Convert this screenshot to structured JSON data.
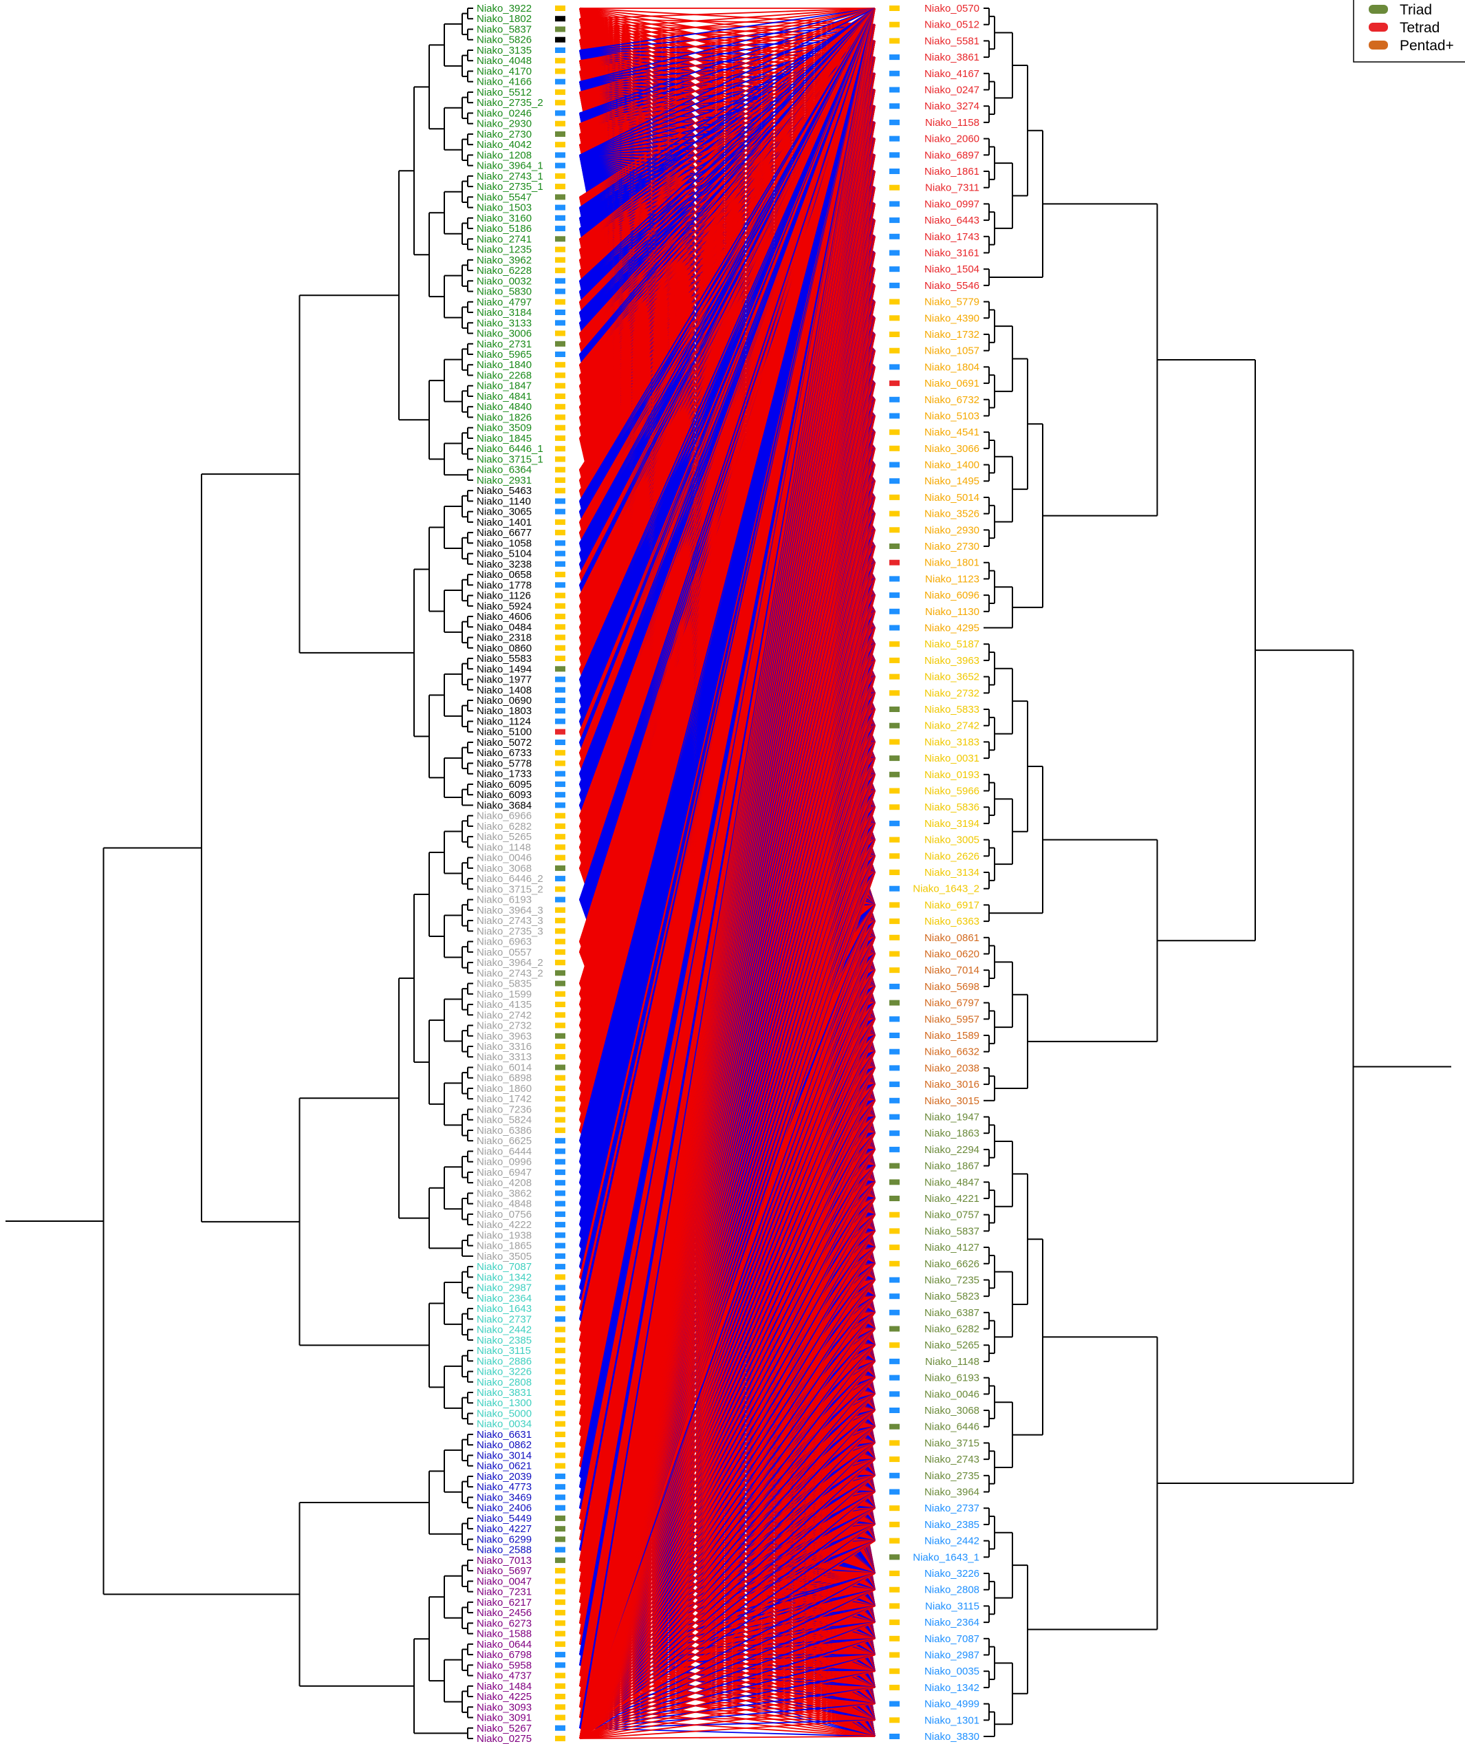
{
  "legend": {
    "items": [
      {
        "label": "Triad",
        "color": "#6b8a3a"
      },
      {
        "label": "Tetrad",
        "color": "#e8262a"
      },
      {
        "label": "Pentad+",
        "color": "#d2691e"
      }
    ]
  },
  "colors": {
    "marker_yellow": "#ffcc00",
    "marker_blue": "#1e90ff",
    "marker_green": "#6b8a3a",
    "marker_red": "#e8262a",
    "link_blue": "#0000ee",
    "link_red": "#ee0000",
    "tree": "#000000"
  },
  "left_groups": [
    {
      "color": "#1a8a1a",
      "labels": [
        "Niako_3922",
        "Niako_1802",
        "Niako_5837",
        "Niako_5826",
        "Niako_3135",
        "Niako_4048",
        "Niako_4170",
        "Niako_4166",
        "Niako_5512",
        "Niako_2735_2",
        "Niako_0246",
        "Niako_2930",
        "Niako_2730",
        "Niako_4042",
        "Niako_1208",
        "Niako_3964_1",
        "Niako_2743_1",
        "Niako_2735_1",
        "Niako_5547",
        "Niako_1503",
        "Niako_3160",
        "Niako_5186",
        "Niako_2741",
        "Niako_1235",
        "Niako_3962",
        "Niako_6228",
        "Niako_0032",
        "Niako_5830",
        "Niako_4797",
        "Niako_3184",
        "Niako_3133",
        "Niako_3006",
        "Niako_2731",
        "Niako_5965",
        "Niako_1840",
        "Niako_2268",
        "Niako_1847",
        "Niako_4841",
        "Niako_4840",
        "Niako_1826",
        "Niako_3509",
        "Niako_1845",
        "Niako_6446_1",
        "Niako_3715_1",
        "Niako_6364",
        "Niako_2931"
      ]
    },
    {
      "color": "#000000",
      "labels": [
        "Niako_5463",
        "Niako_1140",
        "Niako_3065",
        "Niako_1401",
        "Niako_6677",
        "Niako_1058",
        "Niako_5104",
        "Niako_3238",
        "Niako_0658",
        "Niako_1778",
        "Niako_1126",
        "Niako_5924",
        "Niako_4606",
        "Niako_0484",
        "Niako_2318",
        "Niako_0860",
        "Niako_5583",
        "Niako_1494",
        "Niako_1977",
        "Niako_1408",
        "Niako_0690",
        "Niako_1803",
        "Niako_1124",
        "Niako_5100",
        "Niako_5072",
        "Niako_6733",
        "Niako_5778",
        "Niako_1733",
        "Niako_6095",
        "Niako_6093",
        "Niako_3684"
      ]
    },
    {
      "color": "#a0a0a0",
      "labels": [
        "Niako_6966",
        "Niako_6282",
        "Niako_5265",
        "Niako_1148",
        "Niako_0046",
        "Niako_3068",
        "Niako_6446_2",
        "Niako_3715_2",
        "Niako_6193",
        "Niako_3964_3",
        "Niako_2743_3",
        "Niako_2735_3",
        "Niako_6963",
        "Niako_0557",
        "Niako_3964_2",
        "Niako_2743_2",
        "Niako_5835",
        "Niako_1599",
        "Niako_4135",
        "Niako_2742",
        "Niako_2732",
        "Niako_3963",
        "Niako_3316",
        "Niako_3313",
        "Niako_6014",
        "Niako_6898",
        "Niako_1860",
        "Niako_1742",
        "Niako_7236",
        "Niako_5824",
        "Niako_6386",
        "Niako_6625",
        "Niako_6444",
        "Niako_0996",
        "Niako_6947",
        "Niako_4208",
        "Niako_3862",
        "Niako_4848",
        "Niako_0756",
        "Niako_4222",
        "Niako_1938",
        "Niako_1865",
        "Niako_3505"
      ]
    },
    {
      "color": "#40d0c0",
      "labels": [
        "Niako_7087",
        "Niako_1342",
        "Niako_2987",
        "Niako_2364",
        "Niako_1643",
        "Niako_2737",
        "Niako_2442",
        "Niako_2385",
        "Niako_3115",
        "Niako_2886",
        "Niako_3226",
        "Niako_2808",
        "Niako_3831",
        "Niako_1300",
        "Niako_5000",
        "Niako_0034"
      ]
    },
    {
      "color": "#1010c0",
      "labels": [
        "Niako_6631",
        "Niako_0862",
        "Niako_3014",
        "Niako_0621",
        "Niako_2039",
        "Niako_4773",
        "Niako_3469",
        "Niako_2406",
        "Niako_5449",
        "Niako_4227",
        "Niako_6299",
        "Niako_2588"
      ]
    },
    {
      "color": "#800080",
      "labels": [
        "Niako_7013",
        "Niako_5697",
        "Niako_0047",
        "Niako_7231",
        "Niako_6217",
        "Niako_2456",
        "Niako_6273",
        "Niako_1588",
        "Niako_0644",
        "Niako_6798",
        "Niako_5958",
        "Niako_4737",
        "Niako_1484",
        "Niako_4225",
        "Niako_3093",
        "Niako_3091",
        "Niako_5267",
        "Niako_0275"
      ]
    }
  ],
  "right_groups": [
    {
      "color": "#e8262a",
      "labels": [
        "Niako_0570",
        "Niako_0512",
        "Niako_5581",
        "Niako_3861",
        "Niako_4167",
        "Niako_0247",
        "Niako_3274",
        "Niako_1158",
        "Niako_2060",
        "Niako_6897",
        "Niako_1861",
        "Niako_7311",
        "Niako_0997",
        "Niako_6443",
        "Niako_1743",
        "Niako_3161",
        "Niako_1504",
        "Niako_5546"
      ]
    },
    {
      "color": "#f5a800",
      "labels": [
        "Niako_5779",
        "Niako_4390",
        "Niako_1732",
        "Niako_1057",
        "Niako_1804",
        "Niako_0691",
        "Niako_6732",
        "Niako_5103",
        "Niako_4541",
        "Niako_3066",
        "Niako_1400",
        "Niako_1495",
        "Niako_5014",
        "Niako_3526",
        "Niako_2930",
        "Niako_2730",
        "Niako_1801",
        "Niako_1123",
        "Niako_6096",
        "Niako_1130",
        "Niako_4295"
      ]
    },
    {
      "color": "#f0c800",
      "labels": [
        "Niako_5187",
        "Niako_3963",
        "Niako_3652",
        "Niako_2732",
        "Niako_5833",
        "Niako_2742",
        "Niako_3183",
        "Niako_0031",
        "Niako_0193",
        "Niako_5966",
        "Niako_5836",
        "Niako_3194",
        "Niako_3005",
        "Niako_2626",
        "Niako_3134",
        "Niako_1643_2",
        "Niako_6917",
        "Niako_6363"
      ]
    },
    {
      "color": "#d2691e",
      "labels": [
        "Niako_0861",
        "Niako_0620",
        "Niako_7014",
        "Niako_5698",
        "Niako_6797",
        "Niako_5957",
        "Niako_1589",
        "Niako_6632",
        "Niako_2038",
        "Niako_3016",
        "Niako_3015"
      ]
    },
    {
      "color": "#6b8a3a",
      "labels": [
        "Niako_1947",
        "Niako_1863",
        "Niako_2294",
        "Niako_1867",
        "Niako_4847",
        "Niako_4221",
        "Niako_0757",
        "Niako_5837",
        "Niako_4127",
        "Niako_6626",
        "Niako_7235",
        "Niako_5823",
        "Niako_6387",
        "Niako_6282",
        "Niako_5265",
        "Niako_1148",
        "Niako_6193",
        "Niako_0046",
        "Niako_3068",
        "Niako_6446",
        "Niako_3715",
        "Niako_2743",
        "Niako_2735",
        "Niako_3964"
      ]
    },
    {
      "color": "#1e90ff",
      "labels": [
        "Niako_2737",
        "Niako_2385",
        "Niako_2442",
        "Niako_1643_1",
        "Niako_3226",
        "Niako_2808",
        "Niako_3115",
        "Niako_2364",
        "Niako_7087",
        "Niako_2987",
        "Niako_0035",
        "Niako_1342",
        "Niako_4999",
        "Niako_1301",
        "Niako_3830"
      ]
    }
  ],
  "left_markers": "ysgsbyybyybygybbyygbbbgyyybbybbygbyyyyyyyyyyyyybbyybbbybyyyyyyygbbbbbrbyybbbbyyyyygbybyyyyyyggyyyygyygyyyyyybbbbbbbbbbbbbybbybyyyyyyyyyyyyyybbbbgggbgyyyyyyyybbyyyyybyyybyyyyyygy",
  "right_markers": "yyybbbbbbbbybbbbbbyyyybrbbyybbyyygrbbbbyyyyggyggyybyyybyyyyybgbbbbbbbbbgggyyyybbbgybbbbgyybbyyygyyyyyyyybybyyybbbb"
}
